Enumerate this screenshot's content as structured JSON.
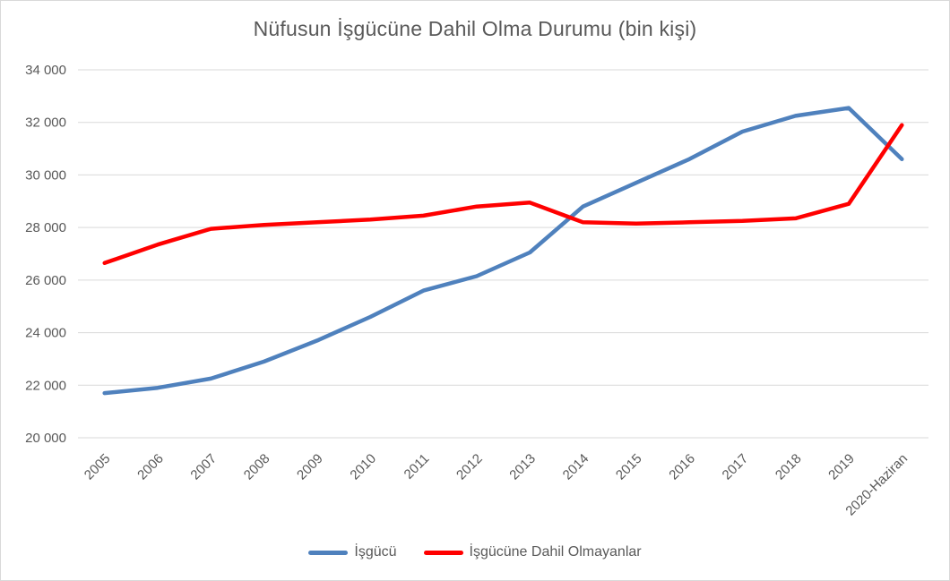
{
  "colors": {
    "labor_force_line": "#4F81BD",
    "not_in_labor_force_line": "#FF0000",
    "gridline": "#D9D9D9",
    "axis_text": "#595959",
    "title_text": "#595959",
    "chart_border": "#D9D9D9"
  },
  "chart_data": {
    "type": "line",
    "title": "Nüfusun İşgücüne Dahil Olma Durumu (bin kişi)",
    "xlabel": "",
    "ylabel": "",
    "categories": [
      "2005",
      "2006",
      "2007",
      "2008",
      "2009",
      "2010",
      "2011",
      "2012",
      "2013",
      "2014",
      "2015",
      "2016",
      "2017",
      "2018",
      "2019",
      "2020-Haziran"
    ],
    "series": [
      {
        "name": "İşgücü",
        "color": "#4F81BD",
        "values": [
          21700,
          21900,
          22250,
          22900,
          23700,
          24600,
          25600,
          26150,
          27050,
          28800,
          29700,
          30600,
          31650,
          32250,
          32550,
          30600
        ]
      },
      {
        "name": "İşgücüne Dahil Olmayanlar",
        "color": "#FF0000",
        "values": [
          26650,
          27350,
          27950,
          28100,
          28200,
          28300,
          28450,
          28800,
          28950,
          28200,
          28150,
          28200,
          28250,
          28350,
          28900,
          31900
        ]
      }
    ],
    "ylim": [
      20000,
      34000
    ],
    "ytick_step": 2000,
    "ytick_labels": [
      "20 000",
      "22 000",
      "24 000",
      "26 000",
      "28 000",
      "30 000",
      "32 000",
      "34 000"
    ],
    "grid": "horizontal",
    "legend_position": "bottom",
    "x_labels_rotation_deg": -45
  }
}
